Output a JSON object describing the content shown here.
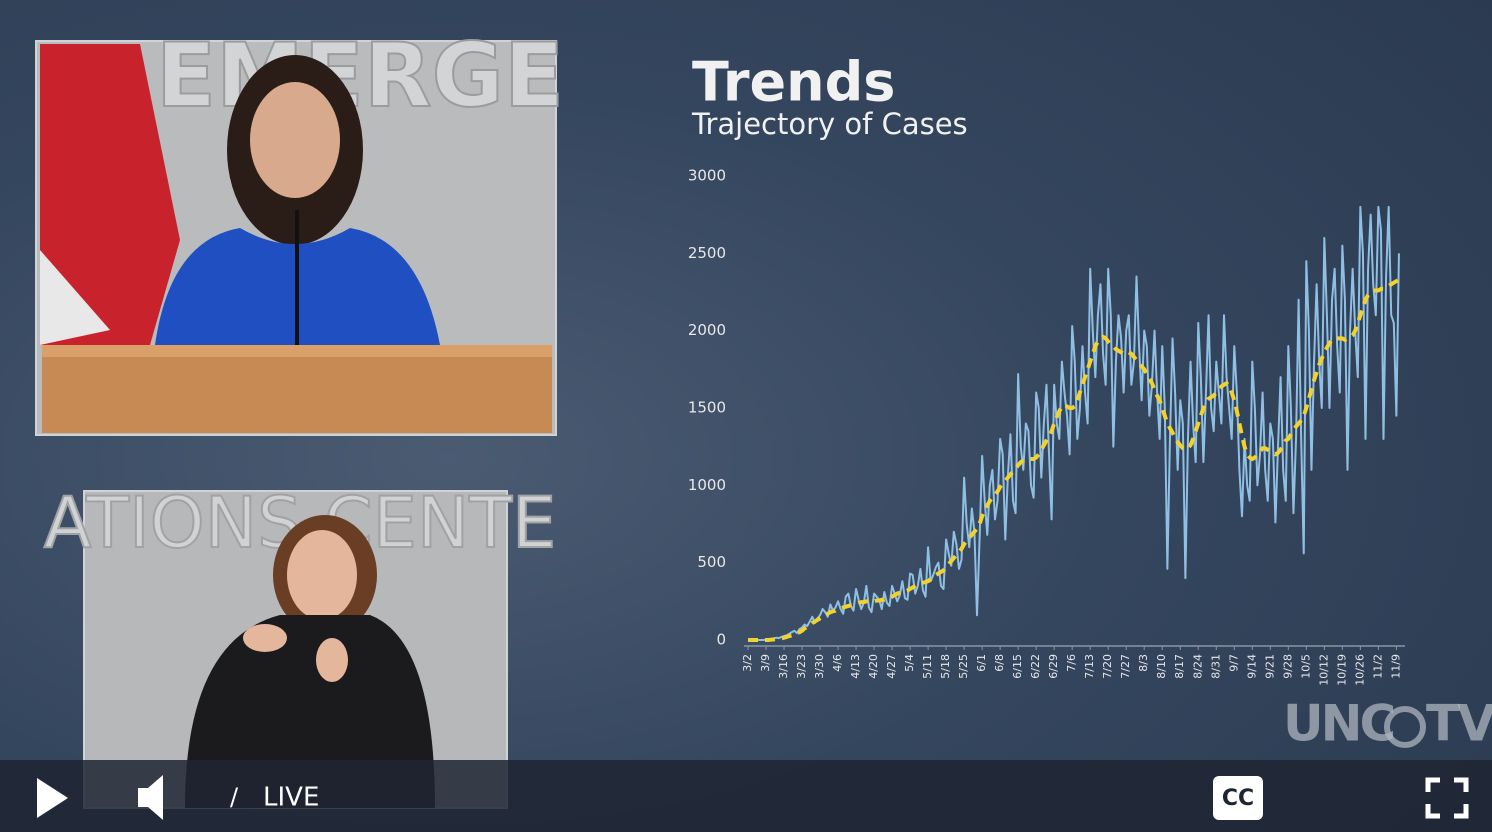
{
  "video_panels": {
    "speaker_wall_text": "EMERGE",
    "interpreter_wall_text": "ATIONS CENTE"
  },
  "logo": {
    "left": "UNC",
    "right": "TV"
  },
  "player": {
    "separator": "/",
    "status": "LIVE",
    "captions": "CC"
  },
  "chart_data": {
    "type": "line",
    "title": "Trends",
    "subtitle": "Trajectory of Cases",
    "categories": [
      "3/2",
      null,
      null,
      null,
      null,
      null,
      null,
      "3/9",
      null,
      null,
      null,
      null,
      null,
      null,
      "3/16",
      null,
      null,
      null,
      null,
      null,
      null,
      "3/23",
      null,
      null,
      null,
      null,
      null,
      null,
      "3/30",
      null,
      null,
      null,
      null,
      null,
      null,
      "4/6",
      null,
      null,
      null,
      null,
      null,
      null,
      "4/13",
      null,
      null,
      null,
      null,
      null,
      null,
      "4/20",
      null,
      null,
      null,
      null,
      null,
      null,
      "4/27",
      null,
      null,
      null,
      null,
      null,
      null,
      "5/4",
      null,
      null,
      null,
      null,
      null,
      null,
      "5/11",
      null,
      null,
      null,
      null,
      null,
      null,
      "5/18",
      null,
      null,
      null,
      null,
      null,
      null,
      "5/25",
      null,
      null,
      null,
      null,
      null,
      null,
      "6/1",
      null,
      null,
      null,
      null,
      null,
      null,
      "6/8",
      null,
      null,
      null,
      null,
      null,
      null,
      "6/15",
      null,
      null,
      null,
      null,
      null,
      null,
      "6/22",
      null,
      null,
      null,
      null,
      null,
      null,
      "6/29",
      null,
      null,
      null,
      null,
      null,
      null,
      "7/6",
      null,
      null,
      null,
      null,
      null,
      null,
      "7/13",
      null,
      null,
      null,
      null,
      null,
      null,
      "7/20",
      null,
      null,
      null,
      null,
      null,
      null,
      "7/27",
      null,
      null,
      null,
      null,
      null,
      null,
      "8/3",
      null,
      null,
      null,
      null,
      null,
      null,
      "8/10",
      null,
      null,
      null,
      null,
      null,
      null,
      "8/17",
      null,
      null,
      null,
      null,
      null,
      null,
      "8/24",
      null,
      null,
      null,
      null,
      null,
      null,
      "8/31",
      null,
      null,
      null,
      null,
      null,
      null,
      "9/7",
      null,
      null,
      null,
      null,
      null,
      null,
      "9/14",
      null,
      null,
      null,
      null,
      null,
      null,
      "9/21",
      null,
      null,
      null,
      null,
      null,
      null,
      "9/28",
      null,
      null,
      null,
      null,
      null,
      null,
      "10/5",
      null,
      null,
      null,
      null,
      null,
      null,
      "10/12",
      null,
      null,
      null,
      null,
      null,
      null,
      "10/19",
      null,
      null,
      null,
      null,
      null,
      null,
      "10/26",
      null,
      null,
      null,
      null,
      null,
      null,
      "11/2",
      null,
      null,
      null,
      null,
      null,
      null,
      "11/9",
      null
    ],
    "series": [
      {
        "color": "#8fbfe3",
        "style": "solid",
        "values": [
          0,
          0,
          0,
          0,
          0,
          0,
          0,
          2,
          5,
          8,
          10,
          15,
          12,
          20,
          25,
          30,
          40,
          50,
          60,
          45,
          70,
          80,
          100,
          90,
          120,
          150,
          110,
          140,
          160,
          200,
          180,
          150,
          230,
          190,
          210,
          250,
          200,
          170,
          280,
          300,
          220,
          190,
          330,
          260,
          200,
          240,
          350,
          210,
          180,
          300,
          280,
          260,
          200,
          310,
          240,
          220,
          350,
          300,
          250,
          290,
          380,
          270,
          260,
          430,
          420,
          300,
          350,
          460,
          320,
          280,
          600,
          380,
          420,
          470,
          500,
          350,
          330,
          650,
          560,
          480,
          700,
          620,
          460,
          520,
          1050,
          750,
          600,
          850,
          700,
          160,
          650,
          1190,
          900,
          680,
          1000,
          1100,
          780,
          900,
          1300,
          1200,
          650,
          1060,
          1330,
          900,
          820,
          1720,
          1250,
          1100,
          1400,
          1350,
          1000,
          920,
          1600,
          1500,
          1050,
          1400,
          1650,
          1200,
          780,
          1650,
          1400,
          1300,
          1800,
          1600,
          1450,
          1200,
          2030,
          1800,
          1300,
          1500,
          1900,
          1600,
          1400,
          2400,
          2000,
          1700,
          2100,
          2300,
          1850,
          1650,
          2400,
          2100,
          1250,
          1800,
          2100,
          1950,
          1600,
          2000,
          2100,
          1650,
          1800,
          2350,
          1900,
          1550,
          2000,
          1900,
          1450,
          1650,
          2000,
          1600,
          1300,
          1900,
          1500,
          460,
          1300,
          1950,
          1600,
          1100,
          1550,
          1400,
          400,
          1300,
          1800,
          1400,
          1150,
          2050,
          1700,
          1150,
          1600,
          2100,
          1500,
          1350,
          1800,
          1600,
          1400,
          2100,
          1700,
          1500,
          1300,
          1900,
          1600,
          1100,
          800,
          1300,
          1000,
          900,
          1800,
          1500,
          1000,
          1200,
          1600,
          1100,
          900,
          1400,
          1300,
          760,
          1250,
          1700,
          1100,
          900,
          1900,
          1500,
          820,
          1300,
          2200,
          1300,
          560,
          2450,
          2000,
          1100,
          1800,
          2300,
          1800,
          1500,
          2600,
          2100,
          1500,
          2200,
          2400,
          1900,
          1600,
          2550,
          2200,
          1100,
          2000,
          2400,
          2000,
          1700,
          2800,
          2500,
          1300,
          2400,
          2750,
          2300,
          2100,
          2800,
          2650,
          1300,
          2350,
          2800,
          2100,
          2050,
          1450,
          2500
        ]
      },
      {
        "color": "#f2d22e",
        "style": "dashed",
        "values": [
          0,
          0,
          0,
          0,
          0,
          0,
          0,
          0,
          0,
          2,
          4,
          6,
          8,
          10,
          15,
          20,
          25,
          30,
          40,
          45,
          50,
          60,
          75,
          85,
          95,
          110,
          120,
          130,
          140,
          150,
          160,
          170,
          180,
          185,
          190,
          200,
          205,
          210,
          215,
          220,
          225,
          230,
          235,
          240,
          245,
          245,
          250,
          250,
          250,
          250,
          255,
          255,
          260,
          260,
          265,
          270,
          280,
          290,
          300,
          305,
          310,
          315,
          320,
          330,
          340,
          350,
          360,
          365,
          370,
          375,
          380,
          395,
          410,
          420,
          430,
          440,
          450,
          470,
          490,
          510,
          530,
          550,
          570,
          590,
          620,
          640,
          660,
          680,
          700,
          720,
          750,
          800,
          840,
          870,
          900,
          920,
          940,
          960,
          990,
          1010,
          1030,
          1050,
          1070,
          1090,
          1110,
          1130,
          1150,
          1160,
          1170,
          1170,
          1170,
          1170,
          1180,
          1200,
          1230,
          1260,
          1290,
          1320,
          1350,
          1400,
          1440,
          1480,
          1510,
          1520,
          1510,
          1500,
          1500,
          1510,
          1550,
          1600,
          1650,
          1700,
          1750,
          1800,
          1850,
          1900,
          1930,
          1950,
          1960,
          1950,
          1930,
          1910,
          1900,
          1880,
          1870,
          1860,
          1850,
          1850,
          1860,
          1850,
          1830,
          1810,
          1790,
          1770,
          1750,
          1720,
          1690,
          1660,
          1620,
          1580,
          1550,
          1500,
          1450,
          1400,
          1370,
          1340,
          1310,
          1280,
          1260,
          1240,
          1230,
          1240,
          1260,
          1300,
          1350,
          1400,
          1450,
          1500,
          1540,
          1560,
          1570,
          1580,
          1600,
          1620,
          1640,
          1650,
          1660,
          1640,
          1600,
          1550,
          1480,
          1400,
          1320,
          1250,
          1200,
          1180,
          1170,
          1180,
          1200,
          1220,
          1240,
          1240,
          1230,
          1220,
          1210,
          1200,
          1210,
          1230,
          1260,
          1290,
          1300,
          1330,
          1360,
          1380,
          1400,
          1420,
          1450,
          1500,
          1560,
          1620,
          1680,
          1730,
          1780,
          1820,
          1860,
          1890,
          1920,
          1940,
          1950,
          1950,
          1950,
          1950,
          1940,
          1950,
          1960,
          1970,
          2000,
          2050,
          2100,
          2150,
          2200,
          2230,
          2250,
          2260,
          2260,
          2260,
          2270,
          2270,
          2280,
          2290,
          2300,
          2310,
          2320,
          2330
        ]
      }
    ],
    "ylim": [
      0,
      3000
    ],
    "yticks": [
      0,
      500,
      1000,
      1500,
      2000,
      2500,
      3000
    ],
    "grid": false
  }
}
